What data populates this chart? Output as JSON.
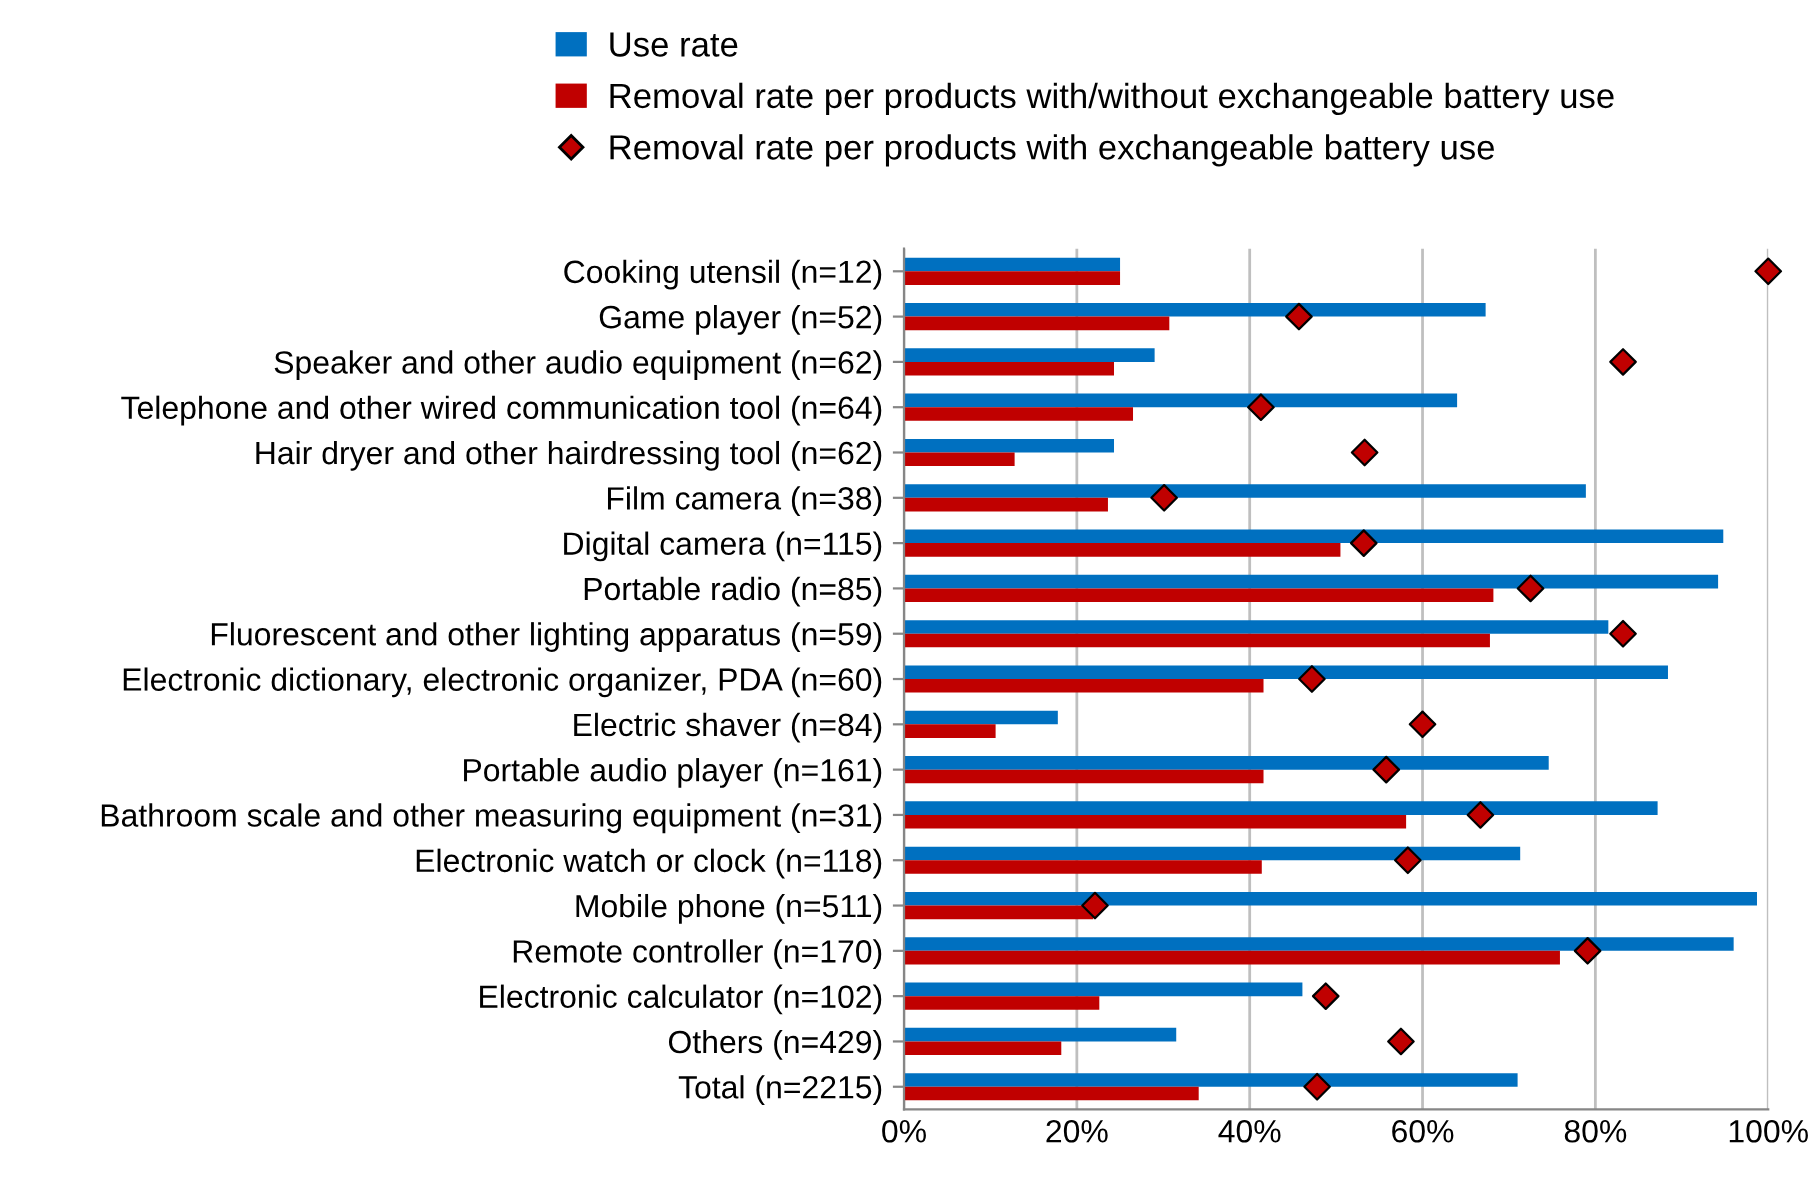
{
  "chart_data": {
    "type": "bar",
    "orientation": "horizontal",
    "categories": [
      "Cooking utensil (n=12)",
      "Game player (n=52)",
      "Speaker and other audio equipment (n=62)",
      "Telephone and other wired communication tool (n=64)",
      "Hair dryer and other hairdressing tool (n=62)",
      "Film camera (n=38)",
      "Digital camera (n=115)",
      "Portable radio (n=85)",
      "Fluorescent and other lighting apparatus (n=59)",
      "Electronic dictionary, electronic organizer, PDA (n=60)",
      "Electric shaver (n=84)",
      "Portable audio player (n=161)",
      "Bathroom scale and other measuring equipment (n=31)",
      "Electronic watch or clock (n=118)",
      "Mobile phone (n=511)",
      "Remote controller (n=170)",
      "Electronic calculator (n=102)",
      "Others (n=429)",
      "Total (n=2215)"
    ],
    "series": [
      {
        "name": "Use rate",
        "color": "#0070c0",
        "values": [
          25.0,
          67.3,
          29.0,
          64.0,
          24.3,
          78.9,
          94.8,
          94.2,
          81.5,
          88.4,
          17.8,
          74.6,
          87.2,
          71.3,
          98.7,
          96.0,
          46.1,
          31.5,
          71.0
        ]
      },
      {
        "name": "Removal rate per products with/without exchangeable battery use",
        "color": "#c00000",
        "values": [
          25.0,
          30.7,
          24.3,
          26.5,
          12.8,
          23.6,
          50.5,
          68.2,
          67.8,
          41.6,
          10.6,
          41.6,
          58.1,
          41.4,
          21.9,
          75.9,
          22.6,
          18.2,
          34.1
        ]
      },
      {
        "name": "Removal rate per products with exchangeable battery use",
        "type": "scatter",
        "marker": "diamond",
        "color": "#c00000",
        "values": [
          100,
          45.7,
          83.2,
          41.3,
          53.3,
          30.1,
          53.2,
          72.5,
          83.2,
          47.2,
          60.0,
          55.8,
          66.7,
          58.3,
          22.1,
          79.1,
          48.8,
          57.5,
          47.8
        ]
      }
    ],
    "xlim": [
      0,
      100
    ],
    "xticks": [
      {
        "value": 0,
        "label": "0%"
      },
      {
        "value": 20,
        "label": "20%"
      },
      {
        "value": 40,
        "label": "40%"
      },
      {
        "value": 60,
        "label": "60%"
      },
      {
        "value": 80,
        "label": "80%"
      },
      {
        "value": 100,
        "label": "100%"
      }
    ],
    "grid": "x",
    "legend": "top"
  }
}
